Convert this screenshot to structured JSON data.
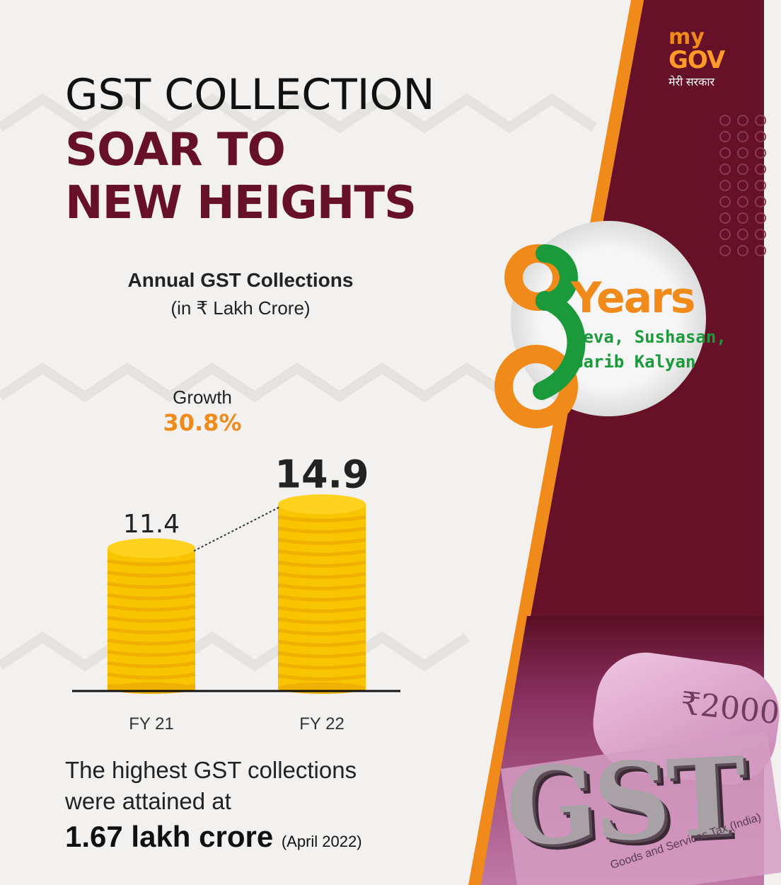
{
  "header": {
    "line1": "GST COLLECTION",
    "line2": "SOAR TO",
    "line3": "NEW HEIGHTS"
  },
  "logo": {
    "my": "my",
    "gov": "GOV",
    "tagline": "मेरी सरकार"
  },
  "badge": {
    "digit": "8",
    "years": "Years",
    "line1": "Seva, Sushasan,",
    "line2": "Garib Kalyan"
  },
  "colors": {
    "maroon": "#661127",
    "orange": "#f08a1a",
    "green": "#1a9a3a",
    "gold": "#f9c400",
    "gold_stripe": "#f0b000"
  },
  "chart_data": {
    "type": "bar",
    "title": "Annual GST Collections",
    "subtitle": "(in ₹ Lakh Crore)",
    "categories": [
      "FY 21",
      "FY 22"
    ],
    "values": [
      11.4,
      14.9
    ],
    "value_labels": [
      "11.4",
      "14.9"
    ],
    "growth_label": "Growth",
    "growth_value": "30.8%",
    "ylim": [
      0,
      16
    ]
  },
  "footer": {
    "line1": "The highest GST collections",
    "line2": "were attained at",
    "amount": "1.67 lakh crore",
    "date": "(April 2022)"
  },
  "photo": {
    "gst_text": "GST",
    "note_value": "₹2000",
    "caption": "Goods and Services Tax (India)"
  }
}
